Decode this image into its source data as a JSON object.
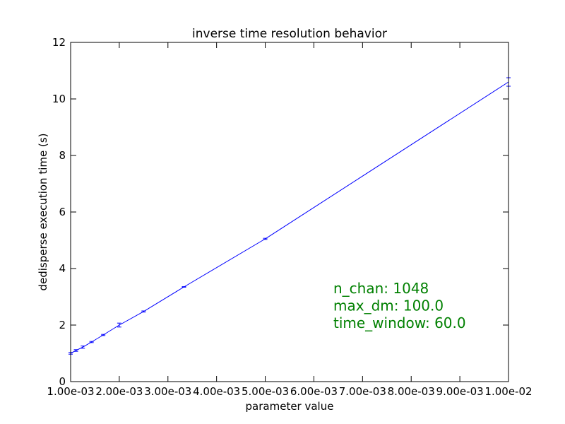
{
  "chart_data": {
    "type": "line",
    "title": "inverse time resolution behavior",
    "xlabel": "parameter value",
    "ylabel": "dedisperse execution time (s)",
    "xlim": [
      0.001,
      0.01
    ],
    "ylim": [
      0,
      12
    ],
    "x_ticks": [
      0.001,
      0.002,
      0.003,
      0.004,
      0.005,
      0.006,
      0.007,
      0.008,
      0.009,
      0.01
    ],
    "x_tick_labels": [
      "1.00e-03",
      "2.00e-03",
      "3.00e-03",
      "4.00e-03",
      "5.00e-03",
      "6.00e-03",
      "7.00e-03",
      "8.00e-03",
      "9.00e-03",
      "1.00e-02"
    ],
    "y_ticks": [
      0,
      2,
      4,
      6,
      8,
      10,
      12
    ],
    "y_tick_labels": [
      "0",
      "2",
      "4",
      "6",
      "8",
      "10",
      "12"
    ],
    "grid": false,
    "legend": "none",
    "line_color": "#0000ff",
    "annotation_color": "#008000",
    "annotations": [
      "n_chan: 1048",
      "max_dm: 100.0",
      "time_window: 60.0"
    ],
    "series": [
      {
        "x": [
          0.001,
          0.00111,
          0.00125,
          0.00143,
          0.00167,
          0.002,
          0.0025,
          0.00333,
          0.005,
          0.01
        ],
        "y": [
          1.0,
          1.1,
          1.22,
          1.4,
          1.65,
          2.0,
          2.48,
          3.35,
          5.05,
          10.6
        ],
        "yerr": [
          0.03,
          0.03,
          0.04,
          0.02,
          0.02,
          0.07,
          0.02,
          0.01,
          0.02,
          0.15
        ]
      }
    ]
  }
}
